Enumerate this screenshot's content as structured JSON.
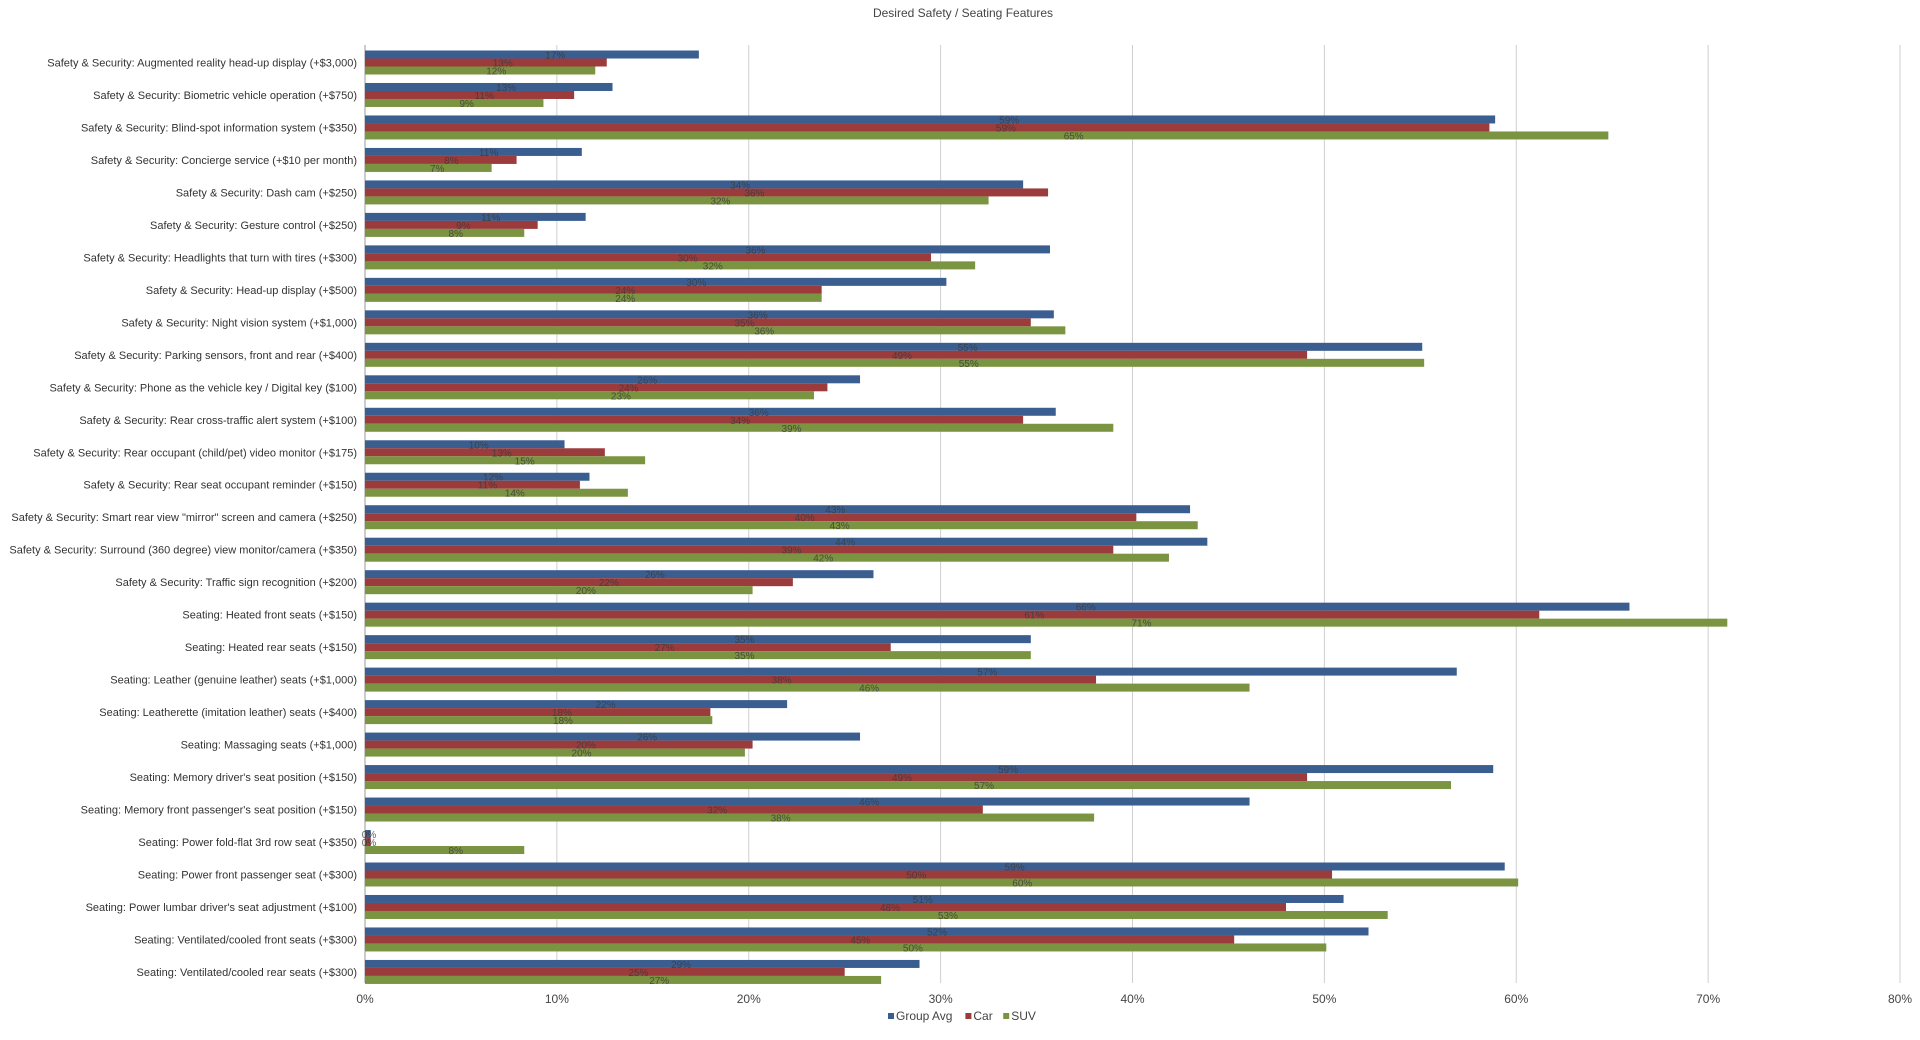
{
  "chart_data": {
    "type": "bar",
    "orientation": "horizontal",
    "title": "Desired Safety / Seating Features",
    "xlim": [
      0,
      80
    ],
    "x_ticks": [
      "0%",
      "10%",
      "20%",
      "30%",
      "40%",
      "50%",
      "60%",
      "70%",
      "80%"
    ],
    "grid": true,
    "legend_position": "bottom",
    "categories": [
      "Safety & Security: Augmented reality head-up display (+$3,000)",
      "Safety & Security: Biometric vehicle operation (+$750)",
      "Safety & Security: Blind-spot information system (+$350)",
      "Safety & Security: Concierge service (+$10 per month)",
      "Safety & Security: Dash cam (+$250)",
      "Safety & Security: Gesture control (+$250)",
      "Safety & Security: Headlights that turn with tires (+$300)",
      "Safety & Security: Head-up display (+$500)",
      "Safety & Security: Night vision system (+$1,000)",
      "Safety & Security: Parking sensors, front and rear (+$400)",
      "Safety & Security: Phone as the vehicle key / Digital key ($100)",
      "Safety & Security: Rear cross-traffic alert system (+$100)",
      "Safety & Security: Rear occupant (child/pet) video monitor (+$175)",
      "Safety & Security: Rear seat occupant reminder (+$150)",
      "Safety & Security: Smart rear view \"mirror\" screen and camera (+$250)",
      "Safety & Security: Surround (360 degree) view monitor/camera (+$350)",
      "Safety & Security: Traffic sign recognition (+$200)",
      "Seating: Heated front seats (+$150)",
      "Seating: Heated rear seats (+$150)",
      "Seating: Leather (genuine leather) seats (+$1,000)",
      "Seating: Leatherette (imitation leather) seats (+$400)",
      "Seating: Massaging seats (+$1,000)",
      "Seating: Memory driver's seat position (+$150)",
      "Seating: Memory front passenger's seat position (+$150)",
      "Seating: Power fold-flat 3rd row seat (+$350)",
      "Seating: Power front passenger seat (+$300)",
      "Seating: Power lumbar driver's seat adjustment (+$100)",
      "Seating: Ventilated/cooled front seats (+$300)",
      "Seating: Ventilated/cooled rear seats (+$300)"
    ],
    "series": [
      {
        "name": "Group Avg",
        "color": "#3b5e91",
        "values": [
          17.4,
          12.9,
          58.9,
          11.3,
          34.3,
          11.5,
          35.7,
          30.3,
          35.9,
          55.1,
          25.8,
          36.0,
          10.4,
          11.7,
          43.0,
          43.9,
          26.5,
          65.9,
          34.7,
          56.9,
          22.0,
          25.8,
          58.8,
          46.1,
          0.3,
          59.4,
          51.0,
          52.3,
          28.9
        ],
        "labels": [
          "17%",
          "13%",
          "59%",
          "11%",
          "34%",
          "11%",
          "36%",
          "30%",
          "36%",
          "55%",
          "26%",
          "36%",
          "10%",
          "12%",
          "43%",
          "44%",
          "26%",
          "66%",
          "35%",
          "57%",
          "22%",
          "26%",
          "59%",
          "46%",
          "0%",
          "59%",
          "51%",
          "52%",
          "29%"
        ]
      },
      {
        "name": "Car",
        "color": "#9c3b3b",
        "values": [
          12.6,
          10.9,
          58.6,
          7.9,
          35.6,
          9.0,
          29.5,
          23.8,
          34.7,
          49.1,
          24.1,
          34.3,
          12.5,
          11.2,
          40.2,
          39.0,
          22.3,
          61.2,
          27.4,
          38.1,
          18.0,
          20.2,
          49.1,
          32.2,
          0.3,
          50.4,
          48.0,
          45.3,
          25.0
        ],
        "labels": [
          "13%",
          "11%",
          "59%",
          "8%",
          "36%",
          "9%",
          "30%",
          "24%",
          "35%",
          "49%",
          "24%",
          "34%",
          "13%",
          "11%",
          "40%",
          "39%",
          "22%",
          "61%",
          "27%",
          "38%",
          "18%",
          "20%",
          "49%",
          "32%",
          "0%",
          "50%",
          "48%",
          "45%",
          "25%"
        ]
      },
      {
        "name": "SUV",
        "color": "#7b9441",
        "values": [
          12.0,
          9.3,
          64.8,
          6.6,
          32.5,
          8.3,
          31.8,
          23.8,
          36.5,
          55.2,
          23.4,
          39.0,
          14.6,
          13.7,
          43.4,
          41.9,
          20.2,
          71.0,
          34.7,
          46.1,
          18.1,
          19.8,
          56.6,
          38.0,
          8.3,
          60.1,
          53.3,
          50.1,
          26.9
        ],
        "labels": [
          "12%",
          "9%",
          "65%",
          "7%",
          "32%",
          "8%",
          "32%",
          "24%",
          "36%",
          "55%",
          "23%",
          "39%",
          "15%",
          "14%",
          "43%",
          "42%",
          "20%",
          "71%",
          "35%",
          "46%",
          "18%",
          "20%",
          "57%",
          "38%",
          "8%",
          "60%",
          "53%",
          "50%",
          "27%"
        ]
      }
    ]
  }
}
